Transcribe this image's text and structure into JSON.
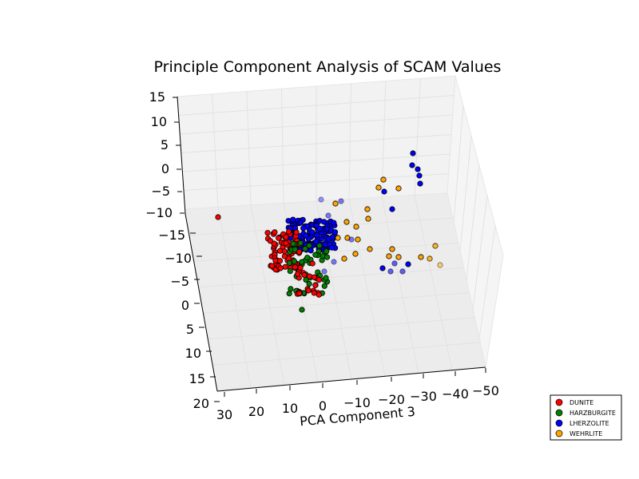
{
  "chart_data": {
    "type": "scatter",
    "projection": "3d",
    "title": "Principle Component Analysis of SCAM Values",
    "xlabel": "PCA Component 3",
    "ylabel": "",
    "zlabel": "",
    "x_ticks": [
      "30",
      "20",
      "10",
      "0",
      "−10",
      "−20",
      "−30",
      "−40",
      "−50"
    ],
    "y_ticks": [
      "20",
      "15",
      "10",
      "5",
      "0",
      "−5",
      "−10",
      "−15"
    ],
    "z_ticks": [
      "15",
      "10",
      "5",
      "0",
      "−5",
      "−10"
    ],
    "grid": true,
    "legend_position": "lower-right",
    "series": [
      {
        "name": "DUNITE",
        "color": "#ff0000"
      },
      {
        "name": "HARZBURGITE",
        "color": "#007f00"
      },
      {
        "name": "LHERZOLITE",
        "color": "#0000ff"
      },
      {
        "name": "WEHRLITE",
        "color": "#ffa500"
      }
    ]
  }
}
